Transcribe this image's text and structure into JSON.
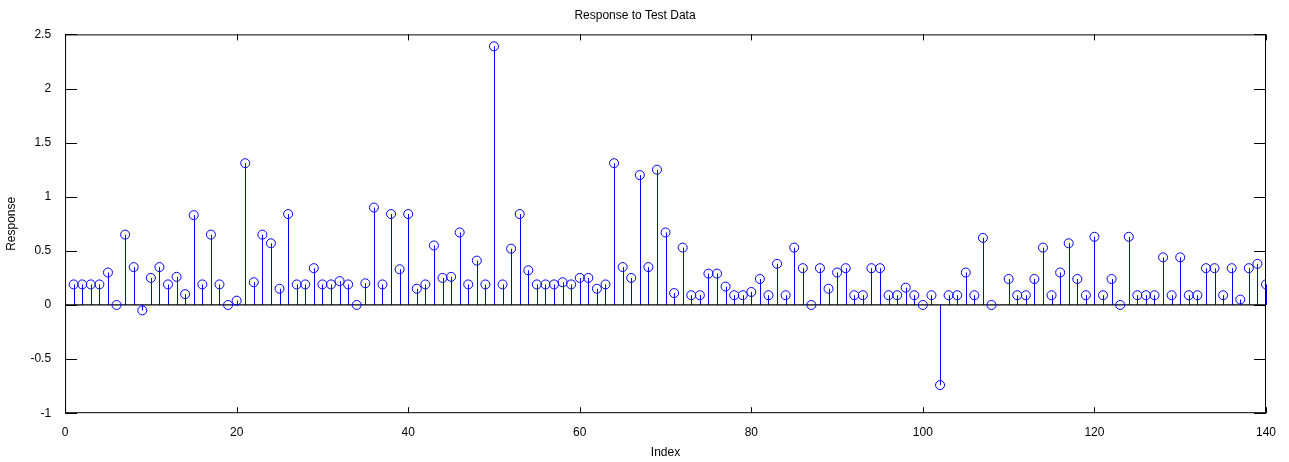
{
  "chart_data": {
    "type": "lollipop",
    "title": "Response to Test Data",
    "xlabel": "Index",
    "ylabel": "Response",
    "x": [
      1,
      2,
      3,
      4,
      5,
      6,
      7,
      8,
      9,
      10,
      11,
      12,
      13,
      14,
      15,
      16,
      17,
      18,
      19,
      20,
      21,
      22,
      23,
      24,
      25,
      26,
      27,
      28,
      29,
      30,
      31,
      32,
      33,
      34,
      35,
      36,
      37,
      38,
      39,
      40,
      41,
      42,
      43,
      44,
      45,
      46,
      47,
      48,
      49,
      50,
      51,
      52,
      53,
      54,
      55,
      56,
      57,
      58,
      59,
      60,
      61,
      62,
      63,
      64,
      65,
      66,
      67,
      68,
      69,
      70,
      71,
      72,
      73,
      74,
      75,
      76,
      77,
      78,
      79,
      80,
      81,
      82,
      83,
      84,
      85,
      86,
      87,
      88,
      89,
      90,
      91,
      92,
      93,
      94,
      95,
      96,
      97,
      98,
      99,
      100,
      101,
      102,
      103,
      104,
      105,
      106,
      107,
      108,
      109,
      110,
      111,
      112,
      113,
      114,
      115,
      116,
      117,
      118,
      119,
      120,
      121,
      122,
      123,
      124,
      125,
      126,
      127,
      128,
      129,
      130,
      131,
      132,
      133,
      134,
      135,
      136,
      137,
      138,
      139,
      140
    ],
    "values": [
      0.19,
      0.19,
      0.19,
      0.19,
      0.3,
      0,
      0.65,
      0.35,
      -0.05,
      0.25,
      0.35,
      0.19,
      0.26,
      0.1,
      0.83,
      0.19,
      0.65,
      0.19,
      0,
      0.04,
      1.31,
      0.21,
      0.65,
      0.57,
      0.15,
      0.84,
      0.19,
      0.19,
      0.34,
      0.19,
      0.19,
      0.22,
      0.19,
      0,
      0.2,
      0.9,
      0.19,
      0.84,
      0.33,
      0.84,
      0.15,
      0.19,
      0.55,
      0.25,
      0.26,
      0.67,
      0.19,
      0.41,
      0.19,
      2.39,
      0.19,
      0.52,
      0.84,
      0.32,
      0.19,
      0.19,
      0.19,
      0.21,
      0.19,
      0.25,
      0.25,
      0.15,
      0.19,
      1.31,
      0.35,
      0.25,
      1.2,
      0.35,
      1.25,
      0.67,
      0.11,
      0.53,
      0.09,
      0.09,
      0.29,
      0.29,
      0.17,
      0.09,
      0.09,
      0.12,
      0.24,
      0.09,
      0.38,
      0.09,
      0.53,
      0.34,
      0,
      0.34,
      0.15,
      0.3,
      0.34,
      0.09,
      0.09,
      0.34,
      0.34,
      0.09,
      0.09,
      0.16,
      0.09,
      0,
      0.09,
      -0.74,
      0.09,
      0.09,
      0.3,
      0.09,
      0.62,
      0,
      null,
      0.24,
      0.09,
      0.09,
      0.24,
      0.53,
      0.09,
      0.3,
      0.57,
      0.24,
      0.09,
      0.63,
      0.09,
      0.24,
      0,
      0.63,
      0.09,
      0.09,
      0.09,
      0.44,
      0.09,
      0.44,
      0.09,
      0.09,
      0.34,
      0.34,
      0.09,
      0.34,
      0.05,
      0.34,
      0.38,
      0.19
    ],
    "color": "#0000ff",
    "marker": "circle",
    "xlim": [
      0,
      140
    ],
    "xticks": [
      0,
      20,
      40,
      60,
      80,
      100,
      120,
      140
    ],
    "ylim": [
      -1,
      2.5
    ],
    "yticks": [
      -1,
      -0.5,
      0,
      0.5,
      1,
      1.5,
      2,
      2.5
    ],
    "ref_lines": [
      {
        "axis": "y",
        "value": 0,
        "color": "#000000"
      }
    ]
  }
}
